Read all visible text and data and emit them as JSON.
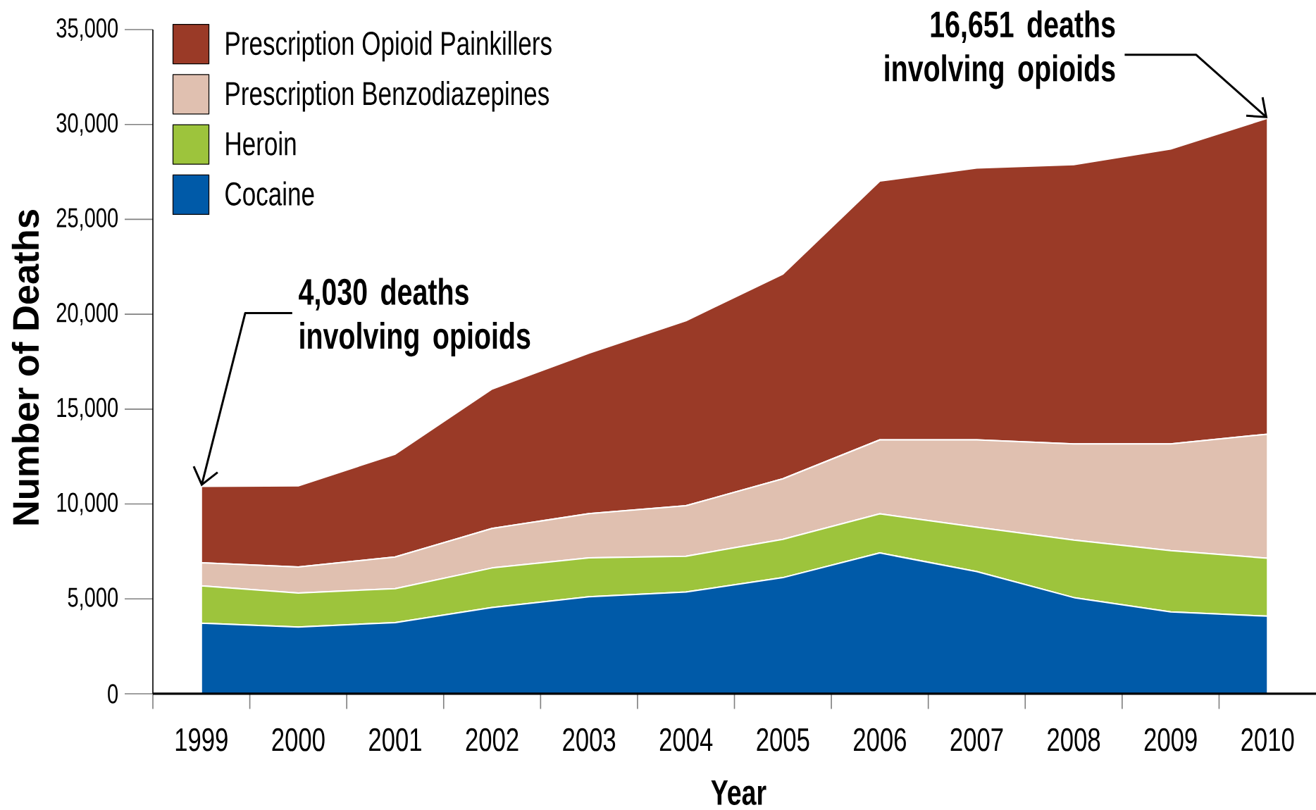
{
  "chart_data": {
    "type": "area",
    "stacked": true,
    "xlabel": "Year",
    "ylabel": "Number of Deaths",
    "categories": [
      "1999",
      "2000",
      "2001",
      "2002",
      "2003",
      "2004",
      "2005",
      "2006",
      "2007",
      "2008",
      "2009",
      "2010"
    ],
    "series": [
      {
        "name": "Cocaine",
        "color": "#005aa8",
        "values": [
          3720,
          3520,
          3750,
          4550,
          5110,
          5360,
          6120,
          7420,
          6440,
          5070,
          4310,
          4090
        ]
      },
      {
        "name": "Heroin",
        "color": "#9dc43c",
        "values": [
          1970,
          1790,
          1790,
          2080,
          2050,
          1890,
          2020,
          2060,
          2340,
          3030,
          3230,
          3050
        ]
      },
      {
        "name": "Prescription Benzodiazepines",
        "color": "#e0c0b0",
        "values": [
          1210,
          1370,
          1670,
          2080,
          2330,
          2660,
          3190,
          3900,
          4600,
          5070,
          5630,
          6540
        ]
      },
      {
        "name": "Prescription Opioid Painkillers",
        "color": "#9a3a27",
        "values": [
          4030,
          4280,
          5420,
          7350,
          8460,
          9750,
          10790,
          13640,
          14330,
          14710,
          15540,
          16651
        ]
      }
    ],
    "ylim": [
      0,
      35000
    ],
    "yticks": [
      0,
      {
        "value": 5000,
        "label": "5,000"
      },
      {
        "value": 10000,
        "label": "10,000"
      },
      {
        "value": 15000,
        "label": "15,000"
      },
      {
        "value": 20000,
        "label": "20,000"
      },
      {
        "value": 25000,
        "label": "25,000"
      },
      {
        "value": 30000,
        "label": "30,000"
      },
      {
        "value": 35000,
        "label": "35,000"
      }
    ],
    "legend": "top left",
    "annotations": [
      {
        "text": "4,030 deaths involving opioids",
        "x": "1999",
        "y": 10930
      },
      {
        "text": "16,651 deaths involving opioids",
        "x": "2010",
        "y": 30331
      }
    ]
  }
}
